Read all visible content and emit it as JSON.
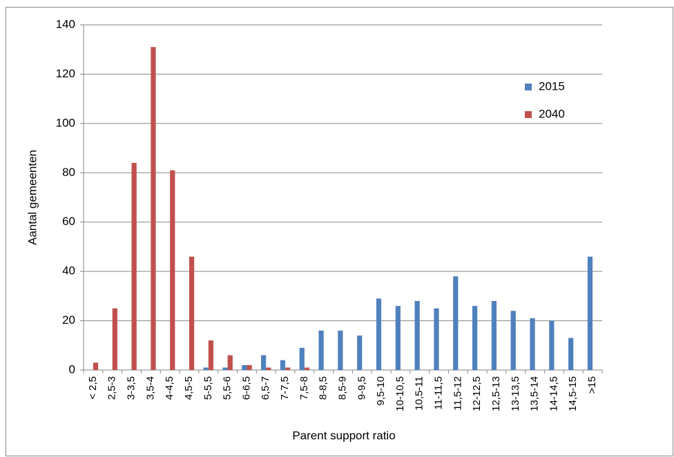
{
  "chart_data": {
    "type": "bar",
    "x_label": "Parent support ratio",
    "y_label": "Aantal gemeenten",
    "categories": [
      "< 2,5",
      "2,5-3",
      "3-3,5",
      "3,5-4",
      "4-4,5",
      "4,5-5",
      "5-5,5",
      "5,5-6",
      "6-6,5",
      "6,5-7",
      "7-7,5",
      "7,5-8",
      "8-8,5",
      "8,5-9",
      "9-9,5",
      "9,5-10",
      "10-10,5",
      "10,5-11",
      "11-11,5",
      "11,5-12",
      "12-12,5",
      "12,5-13",
      "13-13,5",
      "13,5-14",
      "14-14,5",
      "14,5-15",
      ">15"
    ],
    "series": [
      {
        "name": "2015",
        "color": "#4f81bd",
        "values": [
          0,
          0,
          0,
          0,
          0,
          0,
          1,
          1,
          2,
          6,
          4,
          9,
          16,
          16,
          14,
          29,
          26,
          28,
          25,
          38,
          26,
          28,
          24,
          21,
          20,
          13,
          46
        ]
      },
      {
        "name": "2040",
        "color": "#c0504d",
        "values": [
          3,
          25,
          84,
          131,
          81,
          46,
          12,
          6,
          2,
          1,
          1,
          1,
          0,
          0,
          0,
          0,
          0,
          0,
          0,
          0,
          0,
          0,
          0,
          0,
          0,
          0,
          0
        ]
      }
    ],
    "ylim": [
      0,
      140
    ],
    "yticks": [
      0,
      20,
      40,
      60,
      80,
      100,
      120,
      140
    ],
    "grid": true,
    "legend": "right"
  }
}
